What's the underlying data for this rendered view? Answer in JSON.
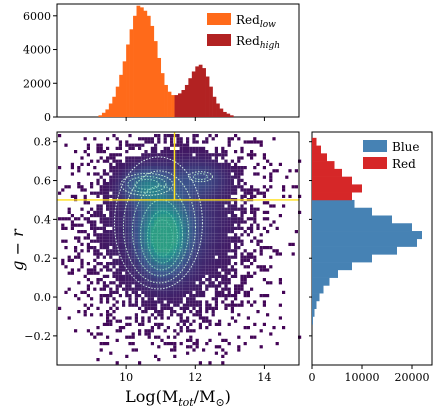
{
  "chart_data": [
    {
      "panel": "top",
      "type": "bar",
      "xlim": [
        8,
        15
      ],
      "ylim": [
        0,
        6700
      ],
      "yticks": [
        0,
        2000,
        4000,
        6000
      ],
      "legend_position": "top-right",
      "series": [
        {
          "name": "Red",
          "name_subscript": "low",
          "color": "#ff6a1a",
          "bins": [
            [
              9.2,
              100
            ],
            [
              9.3,
              250
            ],
            [
              9.4,
              450
            ],
            [
              9.5,
              800
            ],
            [
              9.6,
              1200
            ],
            [
              9.7,
              1800
            ],
            [
              9.8,
              2500
            ],
            [
              9.9,
              3300
            ],
            [
              10.0,
              4300
            ],
            [
              10.1,
              5200
            ],
            [
              10.2,
              6000
            ],
            [
              10.3,
              6600
            ],
            [
              10.4,
              6500
            ],
            [
              10.5,
              6300
            ],
            [
              10.6,
              6000
            ],
            [
              10.7,
              5400
            ],
            [
              10.8,
              4500
            ],
            [
              10.9,
              3500
            ],
            [
              11.0,
              2600
            ],
            [
              11.1,
              1900
            ],
            [
              11.2,
              1500
            ],
            [
              11.3,
              1300
            ]
          ]
        },
        {
          "name": "Red",
          "name_subscript": "high",
          "color": "#b22222",
          "bins": [
            [
              11.4,
              1300
            ],
            [
              11.5,
              1400
            ],
            [
              11.6,
              1600
            ],
            [
              11.7,
              1900
            ],
            [
              11.8,
              2300
            ],
            [
              11.9,
              2700
            ],
            [
              12.0,
              3000
            ],
            [
              12.1,
              3100
            ],
            [
              12.2,
              2900
            ],
            [
              12.3,
              2400
            ],
            [
              12.4,
              1800
            ],
            [
              12.5,
              1200
            ],
            [
              12.6,
              800
            ],
            [
              12.7,
              500
            ],
            [
              12.8,
              300
            ],
            [
              12.9,
              200
            ],
            [
              13.0,
              100
            ]
          ]
        }
      ]
    },
    {
      "panel": "main",
      "type": "scatter",
      "xlabel": "Log(M",
      "xlabel_sub": "tot",
      "xlabel_mid": "/M",
      "xlabel_sub2": "⊙",
      "xlabel_end": ")",
      "ylabel": "g − r",
      "xlim": [
        8,
        15
      ],
      "ylim": [
        -0.35,
        0.85
      ],
      "xticks": [
        10,
        12,
        14
      ],
      "yticks": [
        -0.2,
        0.0,
        0.2,
        0.4,
        0.6,
        0.8
      ],
      "cut_lines": {
        "vertical_x": 11.4,
        "horizontal_y": 0.5,
        "color": "#ffe11a"
      },
      "density_peak": {
        "x": 11.1,
        "y": 0.3
      },
      "secondary_peak": {
        "x": 10.6,
        "y": 0.58
      },
      "tertiary_peak": {
        "x": 12.1,
        "y": 0.62
      }
    },
    {
      "panel": "right",
      "type": "bar",
      "orientation": "horizontal",
      "xlim": [
        0,
        24000
      ],
      "xticks": [
        0,
        10000,
        20000
      ],
      "ylim": [
        -0.35,
        0.85
      ],
      "legend_position": "top-right",
      "series": [
        {
          "name": "Blue",
          "color": "#4682b4",
          "bins": [
            [
              -0.14,
              200
            ],
            [
              -0.1,
              500
            ],
            [
              -0.06,
              900
            ],
            [
              -0.02,
              1500
            ],
            [
              0.02,
              2300
            ],
            [
              0.06,
              3500
            ],
            [
              0.1,
              5200
            ],
            [
              0.14,
              8000
            ],
            [
              0.18,
              12000
            ],
            [
              0.22,
              17000
            ],
            [
              0.26,
              21000
            ],
            [
              0.3,
              22000
            ],
            [
              0.34,
              20000
            ],
            [
              0.38,
              16000
            ],
            [
              0.42,
              12000
            ],
            [
              0.46,
              8500
            ]
          ]
        },
        {
          "name": "Red",
          "color": "#d62728",
          "bins": [
            [
              0.5,
              8000
            ],
            [
              0.54,
              10000
            ],
            [
              0.58,
              8000
            ],
            [
              0.62,
              6000
            ],
            [
              0.66,
              4500
            ],
            [
              0.7,
              3000
            ],
            [
              0.74,
              1800
            ],
            [
              0.78,
              900
            ]
          ]
        }
      ]
    }
  ]
}
